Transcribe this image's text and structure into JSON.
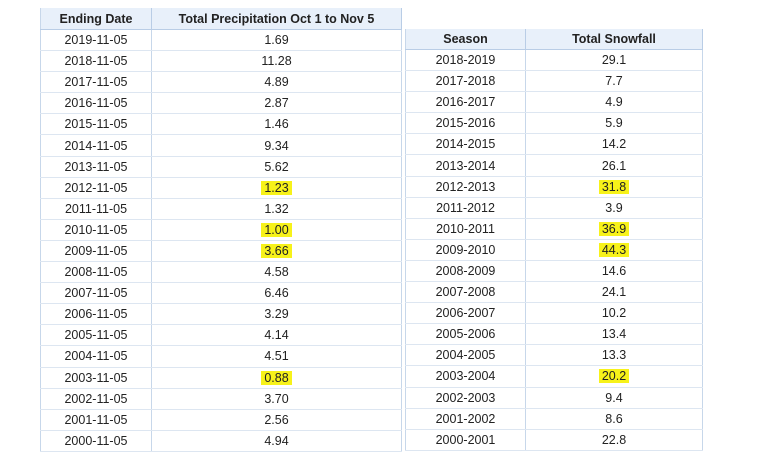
{
  "precip_table": {
    "headers": [
      "Ending Date",
      "Total Precipitation Oct 1 to Nov 5"
    ],
    "rows": [
      {
        "date": "2019-11-05",
        "value": "1.69",
        "highlight": false
      },
      {
        "date": "2018-11-05",
        "value": "11.28",
        "highlight": false
      },
      {
        "date": "2017-11-05",
        "value": "4.89",
        "highlight": false
      },
      {
        "date": "2016-11-05",
        "value": "2.87",
        "highlight": false
      },
      {
        "date": "2015-11-05",
        "value": "1.46",
        "highlight": false
      },
      {
        "date": "2014-11-05",
        "value": "9.34",
        "highlight": false
      },
      {
        "date": "2013-11-05",
        "value": "5.62",
        "highlight": false
      },
      {
        "date": "2012-11-05",
        "value": "1.23",
        "highlight": true
      },
      {
        "date": "2011-11-05",
        "value": "1.32",
        "highlight": false
      },
      {
        "date": "2010-11-05",
        "value": "1.00",
        "highlight": true
      },
      {
        "date": "2009-11-05",
        "value": "3.66",
        "highlight": true
      },
      {
        "date": "2008-11-05",
        "value": "4.58",
        "highlight": false
      },
      {
        "date": "2007-11-05",
        "value": "6.46",
        "highlight": false
      },
      {
        "date": "2006-11-05",
        "value": "3.29",
        "highlight": false
      },
      {
        "date": "2005-11-05",
        "value": "4.14",
        "highlight": false
      },
      {
        "date": "2004-11-05",
        "value": "4.51",
        "highlight": false
      },
      {
        "date": "2003-11-05",
        "value": "0.88",
        "highlight": true
      },
      {
        "date": "2002-11-05",
        "value": "3.70",
        "highlight": false
      },
      {
        "date": "2001-11-05",
        "value": "2.56",
        "highlight": false
      },
      {
        "date": "2000-11-05",
        "value": "4.94",
        "highlight": false
      }
    ]
  },
  "snow_table": {
    "headers": [
      "Season",
      "Total Snowfall"
    ],
    "rows": [
      {
        "season": "2018-2019",
        "value": "29.1",
        "highlight": false
      },
      {
        "season": "2017-2018",
        "value": "7.7",
        "highlight": false
      },
      {
        "season": "2016-2017",
        "value": "4.9",
        "highlight": false
      },
      {
        "season": "2015-2016",
        "value": "5.9",
        "highlight": false
      },
      {
        "season": "2014-2015",
        "value": "14.2",
        "highlight": false
      },
      {
        "season": "2013-2014",
        "value": "26.1",
        "highlight": false
      },
      {
        "season": "2012-2013",
        "value": "31.8",
        "highlight": true
      },
      {
        "season": "2011-2012",
        "value": "3.9",
        "highlight": false
      },
      {
        "season": "2010-2011",
        "value": "36.9",
        "highlight": true
      },
      {
        "season": "2009-2010",
        "value": "44.3",
        "highlight": true
      },
      {
        "season": "2008-2009",
        "value": "14.6",
        "highlight": false
      },
      {
        "season": "2007-2008",
        "value": "24.1",
        "highlight": false
      },
      {
        "season": "2006-2007",
        "value": "10.2",
        "highlight": false
      },
      {
        "season": "2005-2006",
        "value": "13.4",
        "highlight": false
      },
      {
        "season": "2004-2005",
        "value": "13.3",
        "highlight": false
      },
      {
        "season": "2003-2004",
        "value": "20.2",
        "highlight": true
      },
      {
        "season": "2002-2003",
        "value": "9.4",
        "highlight": false
      },
      {
        "season": "2001-2002",
        "value": "8.6",
        "highlight": false
      },
      {
        "season": "2000-2001",
        "value": "22.8",
        "highlight": false
      }
    ]
  },
  "colors": {
    "header_bg": "#e8f0fa",
    "highlight": "#f7f21a",
    "border": "#c7d7ea"
  }
}
